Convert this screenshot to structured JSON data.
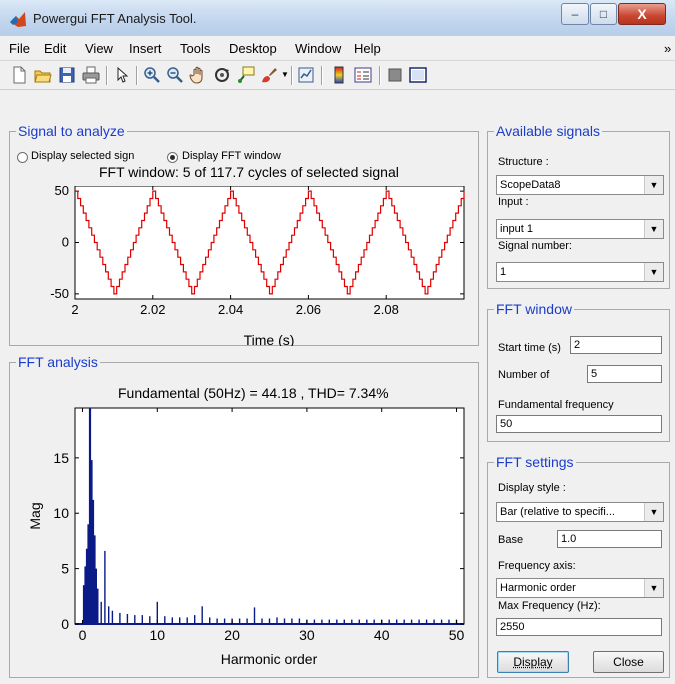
{
  "window": {
    "title": "Powergui FFT Analysis Tool.",
    "accent_title_bar": "#c3d6ee",
    "controls": {
      "minimize": "–",
      "maximize": "□",
      "close": "X"
    }
  },
  "menu": {
    "items": [
      "File",
      "Edit",
      "View",
      "Insert",
      "Tools",
      "Desktop",
      "Window",
      "Help"
    ],
    "overflow": "»"
  },
  "toolbar": {
    "icons": [
      "new-file-icon",
      "open-folder-icon",
      "save-icon",
      "print-icon",
      "pointer-icon",
      "zoom-in-icon",
      "zoom-out-icon",
      "pan-hand-icon",
      "rotate-3d-icon",
      "data-cursor-icon",
      "brush-icon",
      "link-plot-icon",
      "colorbar-icon",
      "legend-icon",
      "hide-plot-tools-icon",
      "show-plot-tools-icon"
    ]
  },
  "signal_panel": {
    "title": "Signal to analyze",
    "radio_selected_signal": "Display selected sign",
    "radio_fft_window": "Display FFT window",
    "selected_radio": "Display FFT window",
    "plot_title": "FFT window: 5 of 117.7 cycles of selected signal",
    "xlabel": "Time (s)"
  },
  "fft_panel": {
    "title": "FFT analysis",
    "plot_title": "Fundamental (50Hz) = 44.18 , THD= 7.34%",
    "xlabel": "Harmonic order",
    "ylabel": "Mag"
  },
  "available_signals": {
    "title": "Available signals",
    "structure_label": "Structure :",
    "structure_value": "ScopeData8",
    "input_label": "Input :",
    "input_value": "input 1",
    "signal_number_label": "Signal number:",
    "signal_number_value": "1"
  },
  "fft_window": {
    "title": "FFT window",
    "start_time_label": "Start time (s)",
    "start_time_value": "2",
    "number_of_label": "Number of",
    "number_of_value": "5",
    "fundamental_label": "Fundamental frequency",
    "fundamental_value": "50"
  },
  "fft_settings": {
    "title": "FFT settings",
    "display_style_label": "Display style :",
    "display_style_value": "Bar (relative to specifi...",
    "base_label": "Base",
    "base_value": "1.0",
    "frequency_axis_label": "Frequency axis:",
    "frequency_axis_value": "Harmonic order",
    "max_frequency_label": "Max Frequency (Hz):",
    "max_frequency_value": "2550"
  },
  "buttons": {
    "display": "Display",
    "close": "Close"
  },
  "chart_data": [
    {
      "type": "line",
      "title": "FFT window: 5 of 117.7 cycles of selected signal",
      "xlabel": "Time (s)",
      "ylabel": "",
      "xlim": [
        2.0,
        2.1
      ],
      "ylim": [
        -55,
        55
      ],
      "xticks": [
        2,
        2.02,
        2.04,
        2.06,
        2.08
      ],
      "xtick_labels": [
        "2",
        "2.02",
        "2.04",
        "2.06",
        "2.08"
      ],
      "yticks": [
        -50,
        0,
        50
      ],
      "ytick_labels": [
        "-50",
        "0",
        "50"
      ],
      "series": [
        {
          "color": "#e00000",
          "style": "stepped triangle wave, 50 Hz, peak ±50",
          "x": [
            2.0,
            2.005,
            2.01,
            2.015,
            2.02,
            2.025,
            2.03,
            2.035,
            2.04,
            2.045,
            2.05,
            2.055,
            2.06,
            2.065,
            2.07,
            2.075,
            2.08,
            2.085,
            2.09,
            2.095,
            2.1
          ],
          "y": [
            50,
            0,
            -50,
            0,
            50,
            0,
            -50,
            0,
            50,
            0,
            -50,
            0,
            50,
            0,
            -50,
            0,
            50,
            0,
            -50,
            0,
            50
          ]
        }
      ],
      "grid": false
    },
    {
      "type": "bar",
      "title": "Fundamental (50Hz) = 44.18 , THD= 7.34%",
      "xlabel": "Harmonic order",
      "ylabel": "Mag",
      "xlim": [
        -1,
        51
      ],
      "ylim": [
        0,
        19.5
      ],
      "xticks": [
        0,
        10,
        20,
        30,
        40,
        50
      ],
      "xtick_labels": [
        "0",
        "10",
        "20",
        "30",
        "40",
        "50"
      ],
      "yticks": [
        0,
        5,
        10,
        15
      ],
      "ytick_labels": [
        "0",
        "5",
        "10",
        "15"
      ],
      "color": "#0a1a86",
      "x": [
        0.2,
        0.4,
        0.6,
        0.8,
        1.0,
        1.2,
        1.4,
        1.6,
        1.8,
        2.0,
        2.5,
        3.0,
        3.5,
        4,
        5,
        6,
        7,
        8,
        9,
        10,
        11,
        12,
        13,
        14,
        15,
        16,
        17,
        18,
        19,
        20,
        21,
        22,
        23,
        24,
        25,
        26,
        27,
        28,
        29,
        30,
        31,
        32,
        33,
        34,
        35,
        36,
        37,
        38,
        39,
        40,
        41,
        42,
        43,
        44,
        45,
        46,
        47,
        48,
        49,
        50
      ],
      "values": [
        3.5,
        5.2,
        6.8,
        9.0,
        19.5,
        14.8,
        11.2,
        8.0,
        5.0,
        3.2,
        2.0,
        6.6,
        1.6,
        1.2,
        1.0,
        0.9,
        0.8,
        0.8,
        0.7,
        2.0,
        0.7,
        0.6,
        0.6,
        0.6,
        0.8,
        1.6,
        0.6,
        0.5,
        0.5,
        0.5,
        0.5,
        0.5,
        1.5,
        0.5,
        0.5,
        0.6,
        0.5,
        0.5,
        0.5,
        0.4,
        0.4,
        0.4,
        0.4,
        0.4,
        0.4,
        0.4,
        0.4,
        0.4,
        0.4,
        0.4,
        0.4,
        0.4,
        0.4,
        0.4,
        0.4,
        0.4,
        0.4,
        0.4,
        0.4,
        0.4
      ]
    }
  ]
}
